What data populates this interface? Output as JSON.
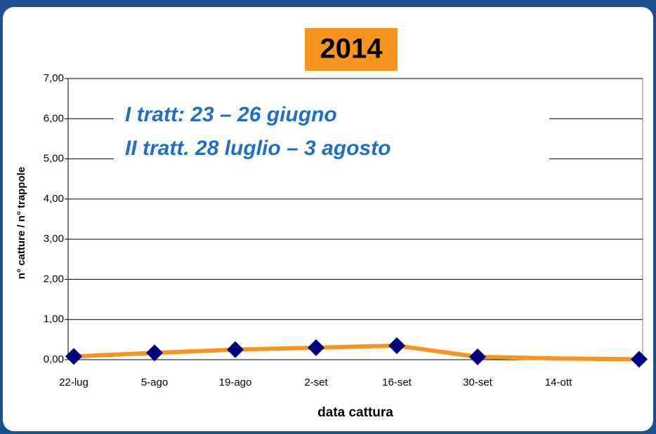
{
  "chart_data": {
    "type": "line",
    "title": "2014",
    "annotation": [
      "I tratt: 23 – 26 giugno",
      "II tratt. 28 luglio – 3 agosto"
    ],
    "x_label": "data cattura",
    "y_label": "n° catture / n° trappole",
    "categories": [
      "22-lug",
      "5-ago",
      "19-ago",
      "2-set",
      "16-set",
      "30-set",
      "14-ott",
      null
    ],
    "values": [
      0.08,
      0.17,
      0.25,
      0.3,
      0.35,
      0.07,
      0.03,
      0.01
    ],
    "line_color": "#f7941d",
    "marker_color": "#000080",
    "grid": true,
    "ylim": [
      0,
      7
    ],
    "yticks": [
      {
        "value": 0,
        "label": "0,00"
      },
      {
        "value": 1,
        "label": "1,00"
      },
      {
        "value": 2,
        "label": "2,00"
      },
      {
        "value": 3,
        "label": "3,00"
      },
      {
        "value": 4,
        "label": "4,00"
      },
      {
        "value": 5,
        "label": "5,00"
      },
      {
        "value": 6,
        "label": "6,00"
      },
      {
        "value": 7,
        "label": "7,00"
      }
    ]
  }
}
